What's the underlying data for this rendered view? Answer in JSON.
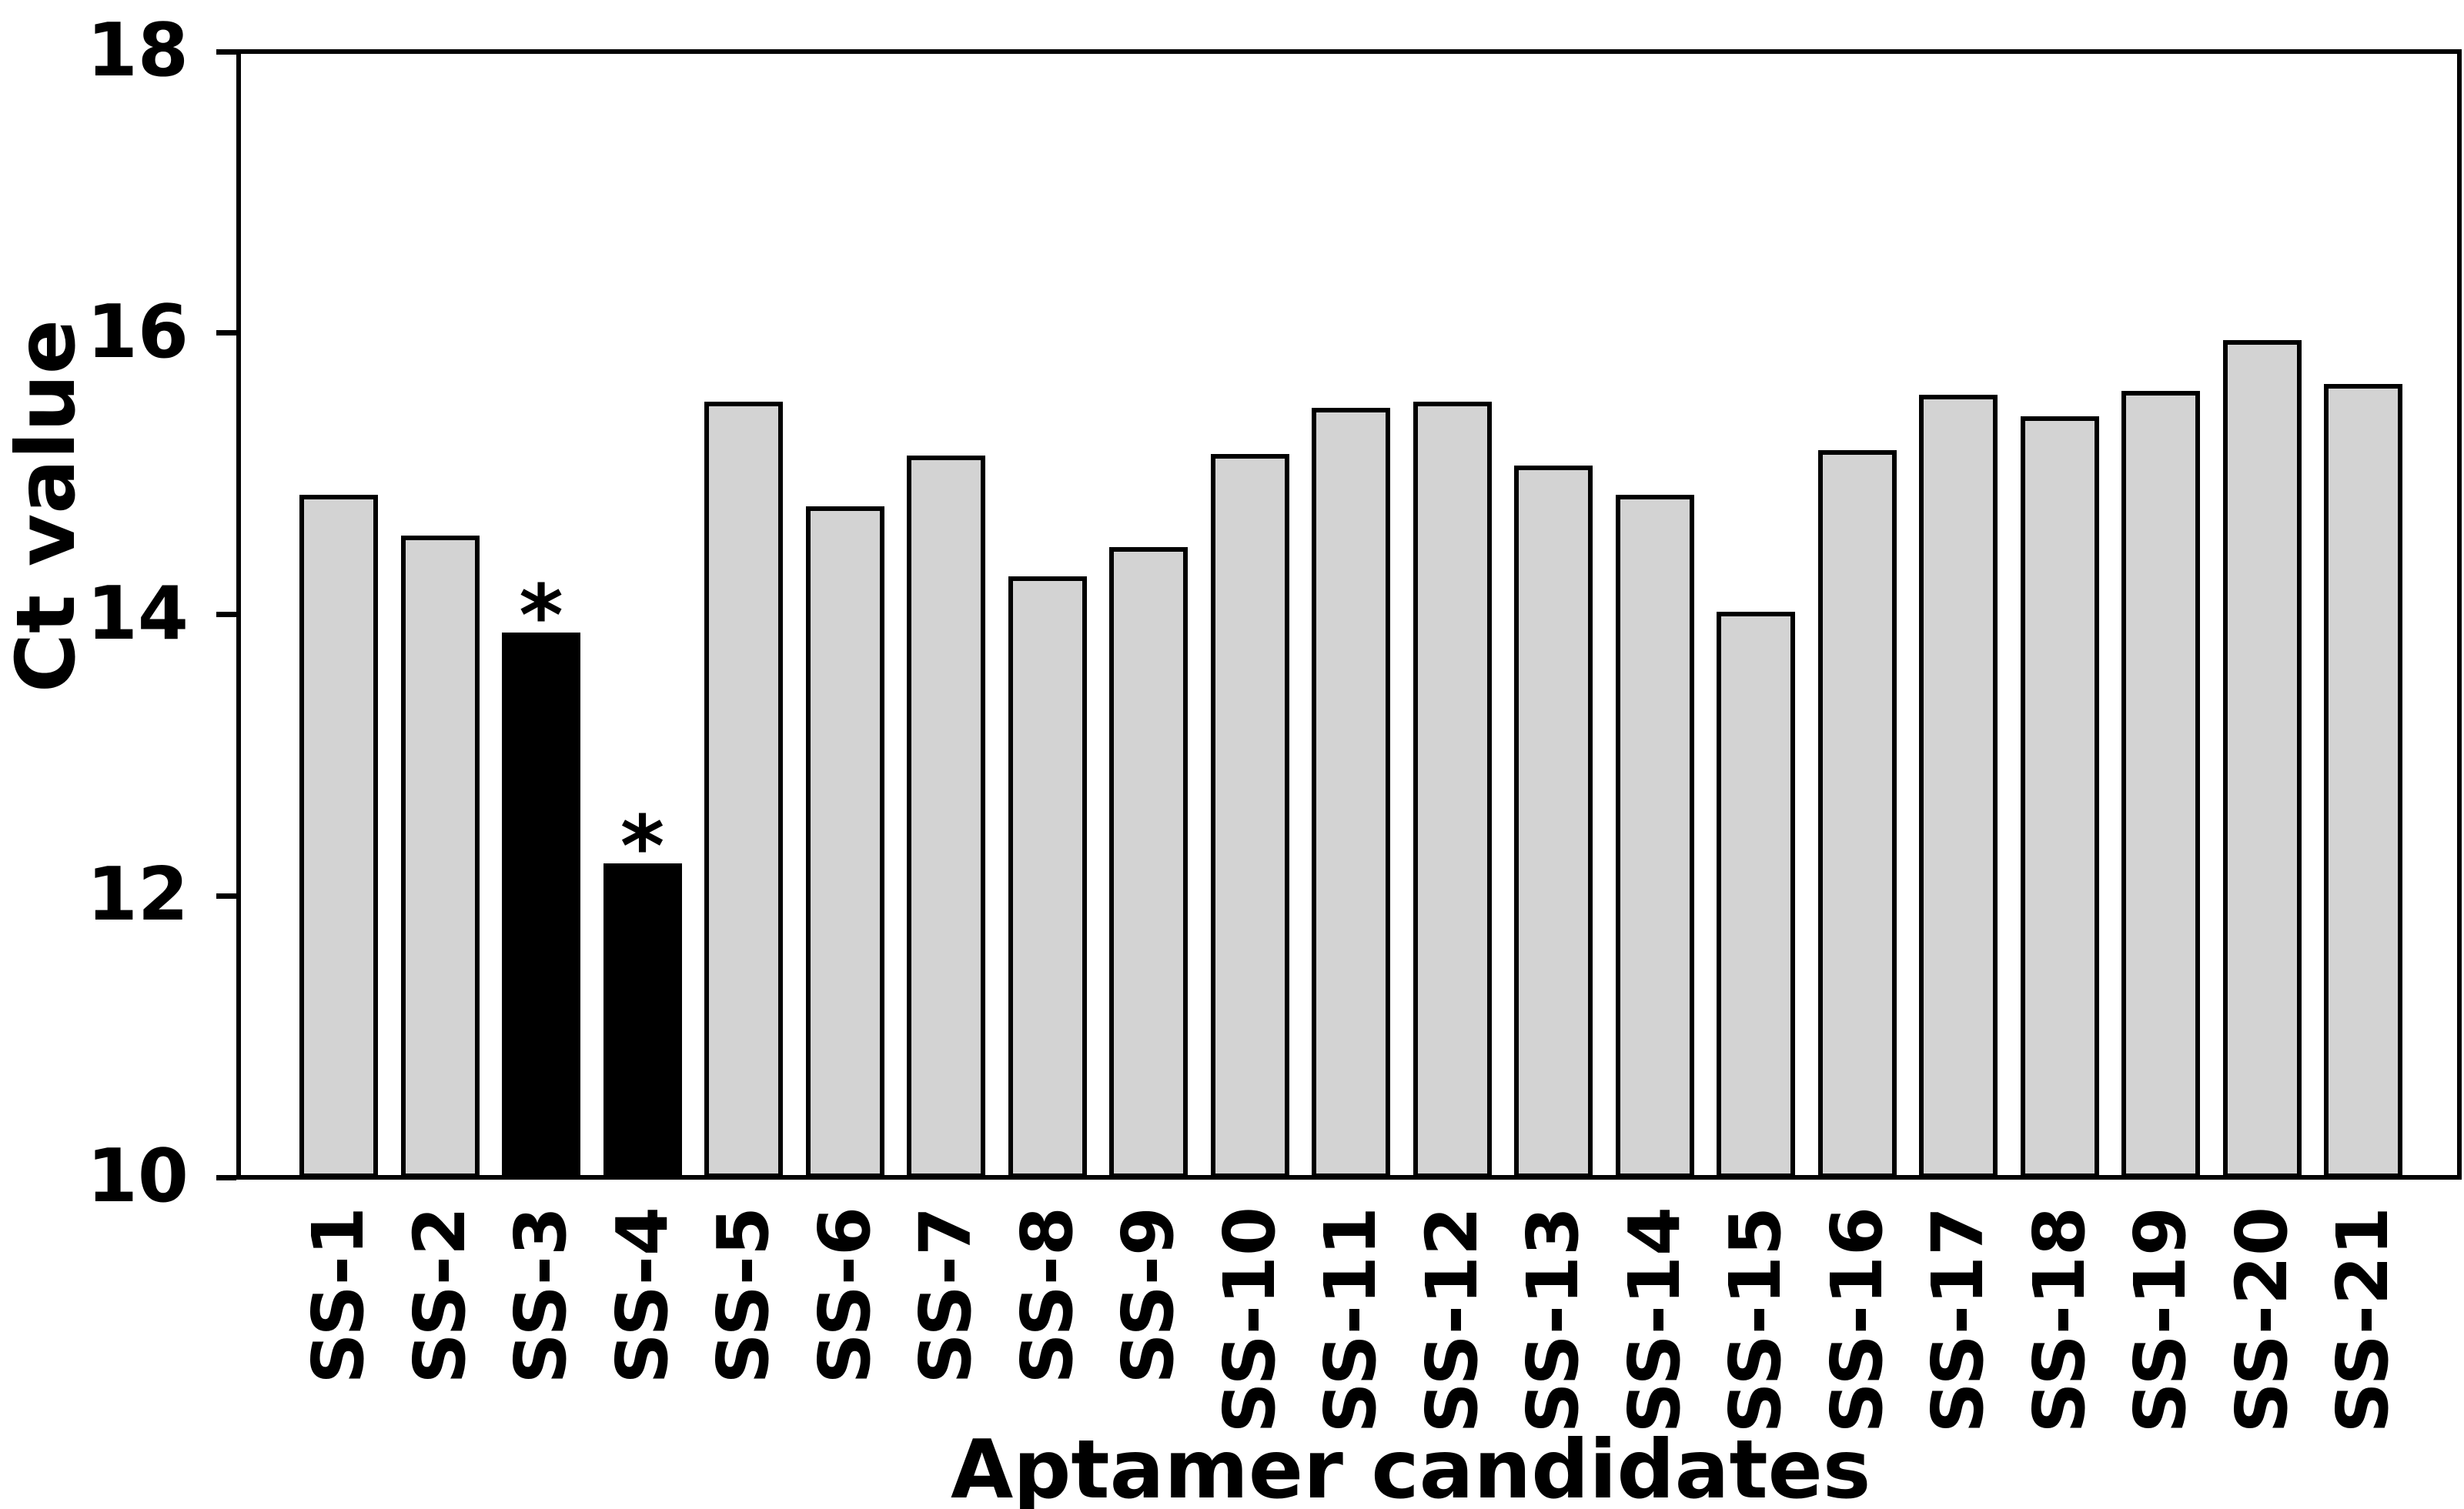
{
  "chart_data": {
    "type": "bar",
    "title": "",
    "xlabel": "Aptamer candidates",
    "ylabel": "Ct value",
    "categories": [
      "SS-1",
      "SS-2",
      "SS-3",
      "SS-4",
      "SS-5",
      "SS-6",
      "SS-7",
      "SS-8",
      "SS-9",
      "SS-10",
      "SS-11",
      "SS-12",
      "SS-13",
      "SS-14",
      "SS-15",
      "SS-16",
      "SS-17",
      "SS-18",
      "SS-19",
      "SS-20",
      "SS-21"
    ],
    "values": [
      14.85,
      14.56,
      13.87,
      12.23,
      15.51,
      14.77,
      15.13,
      14.27,
      14.48,
      15.14,
      15.47,
      15.51,
      15.06,
      14.85,
      14.02,
      15.17,
      15.56,
      15.41,
      15.59,
      15.95,
      15.64
    ],
    "highlighted_categories": [
      "SS-3",
      "SS-4"
    ],
    "annotations": [
      {
        "category": "SS-3",
        "symbol": "*"
      },
      {
        "category": "SS-4",
        "symbol": "*"
      }
    ],
    "ylim": [
      10,
      18
    ],
    "yticks": [
      "10",
      "12",
      "14",
      "16",
      "18"
    ],
    "grid": "off",
    "legend": "none",
    "bar_fill_default": "#d3d3d3",
    "bar_fill_highlight": "#000000",
    "outline_color": "#000000",
    "background_color": "#ffffff"
  }
}
